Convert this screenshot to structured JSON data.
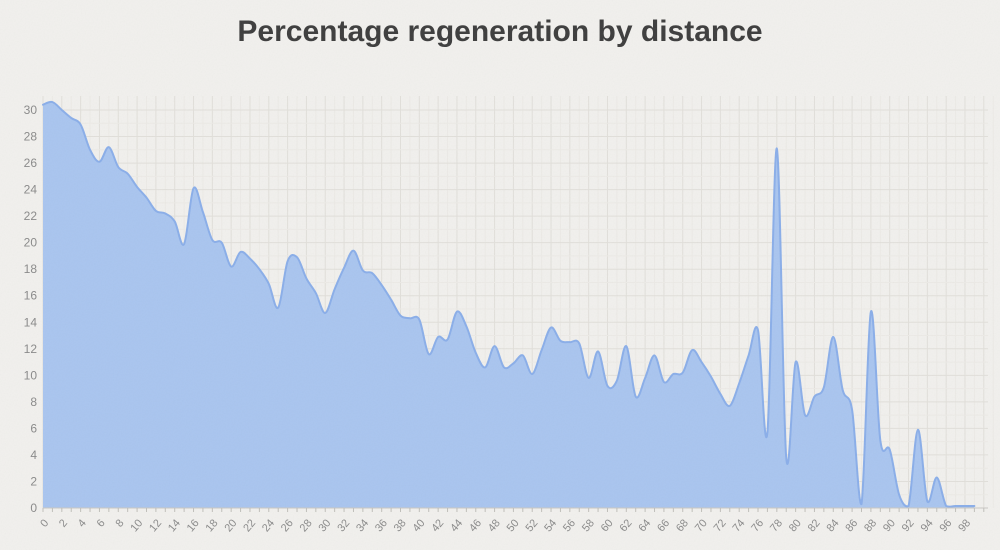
{
  "page": {
    "title": "Percentage regeneration by distance"
  },
  "chart_data": {
    "type": "area",
    "title": "Percentage regeneration by distance",
    "xlabel": "",
    "ylabel": "",
    "legend": false,
    "grid": true,
    "xlim": [
      0,
      100
    ],
    "ylim": [
      0,
      30
    ],
    "x_tick_step": 2,
    "y_tick_step": 2,
    "x_ticks": [
      0,
      2,
      4,
      6,
      8,
      10,
      12,
      14,
      16,
      18,
      20,
      22,
      24,
      26,
      28,
      30,
      32,
      34,
      36,
      38,
      40,
      42,
      44,
      46,
      48,
      50,
      52,
      54,
      56,
      58,
      60,
      62,
      64,
      66,
      68,
      70,
      72,
      74,
      76,
      78,
      80,
      82,
      84,
      86,
      88,
      90,
      92,
      94,
      96,
      98
    ],
    "y_ticks": [
      0,
      2,
      4,
      6,
      8,
      10,
      12,
      14,
      16,
      18,
      20,
      22,
      24,
      26,
      28,
      30
    ],
    "x": [
      0,
      1,
      2,
      3,
      4,
      5,
      6,
      7,
      8,
      9,
      10,
      11,
      12,
      13,
      14,
      15,
      16,
      17,
      18,
      19,
      20,
      21,
      22,
      23,
      24,
      25,
      26,
      27,
      28,
      29,
      30,
      31,
      32,
      33,
      34,
      35,
      36,
      37,
      38,
      39,
      40,
      41,
      42,
      43,
      44,
      45,
      46,
      47,
      48,
      49,
      50,
      51,
      52,
      53,
      54,
      55,
      56,
      57,
      58,
      59,
      60,
      61,
      62,
      63,
      64,
      65,
      66,
      67,
      68,
      69,
      70,
      71,
      72,
      73,
      74,
      75,
      76,
      77,
      78,
      79,
      80,
      81,
      82,
      83,
      84,
      85,
      86,
      87,
      88,
      89,
      90,
      91,
      92,
      93,
      94,
      95,
      96,
      97,
      98,
      99
    ],
    "values": [
      30.4,
      30.6,
      30.0,
      29.4,
      28.9,
      27.0,
      26.1,
      27.2,
      25.7,
      25.2,
      24.2,
      23.4,
      22.4,
      22.2,
      21.6,
      19.9,
      24.1,
      22.3,
      20.2,
      20.0,
      18.2,
      19.3,
      18.8,
      18.0,
      16.9,
      15.1,
      18.6,
      18.9,
      17.3,
      16.2,
      14.7,
      16.5,
      18.1,
      19.4,
      17.9,
      17.7,
      16.8,
      15.7,
      14.5,
      14.3,
      14.2,
      11.6,
      12.9,
      12.7,
      14.8,
      13.7,
      11.7,
      10.6,
      12.2,
      10.6,
      10.9,
      11.5,
      10.1,
      11.9,
      13.6,
      12.6,
      12.5,
      12.4,
      9.8,
      11.8,
      9.2,
      9.6,
      12.2,
      8.4,
      9.8,
      11.5,
      9.5,
      10.1,
      10.2,
      11.9,
      11.0,
      9.9,
      8.6,
      7.7,
      9.4,
      11.5,
      13.4,
      5.7,
      27.1,
      3.8,
      11.0,
      7.0,
      8.4,
      9.1,
      12.9,
      8.9,
      7.4,
      0.3,
      14.8,
      5.1,
      4.4,
      1.0,
      0.15,
      5.9,
      0.5,
      2.3,
      0.15,
      0.15,
      0.15,
      0.15
    ],
    "colors": {
      "background": "#f1f0ed",
      "area_fill": "#a9c5ef",
      "area_line": "#8aaee9",
      "grid_minor": "#eceae6",
      "grid_major": "#e1dfda",
      "axis_line": "#c9c7c3",
      "tick_mark": "#c0bfba",
      "tick_label": "#8a8a8a",
      "title": "#3d3d3d"
    }
  }
}
